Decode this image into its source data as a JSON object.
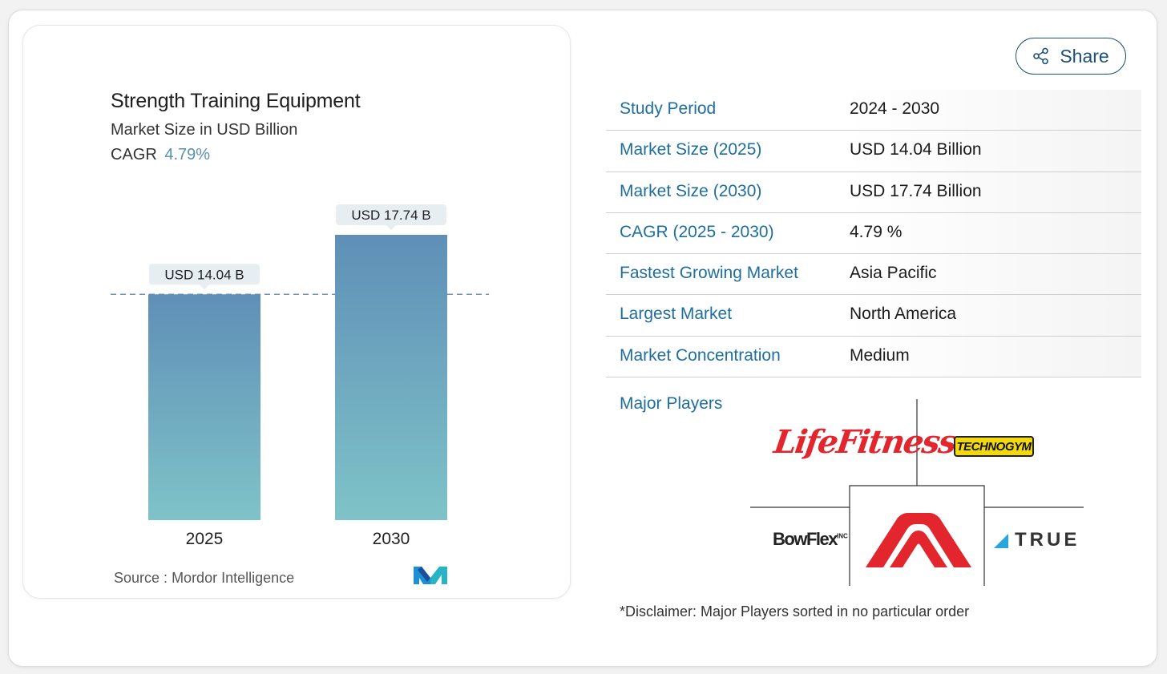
{
  "chart_data": {
    "type": "bar",
    "title": "Strength Training Equipment",
    "subtitle": "Market Size in USD Billion",
    "cagr_label": "CAGR",
    "cagr_value": "4.79%",
    "categories": [
      "2025",
      "2030"
    ],
    "values": [
      14.04,
      17.74
    ],
    "data_labels": [
      "USD 14.04 B",
      "USD 17.74 B"
    ],
    "ylim": [
      0,
      17.74
    ],
    "grid": false,
    "reference_line": 14.04,
    "colors": {
      "bar_top": "#5f8fb7",
      "bar_bottom": "#7fc3c8",
      "label_bg": "#e6eef2"
    }
  },
  "source": {
    "label": "Source :",
    "name": "Mordor Intelligence",
    "logo": "mordor-intelligence-logo"
  },
  "share": {
    "label": "Share",
    "icon": "share-icon"
  },
  "info": [
    {
      "key": "Study Period",
      "value": "2024 - 2030"
    },
    {
      "key": "Market Size (2025)",
      "value": "USD 14.04 Billion"
    },
    {
      "key": "Market Size (2030)",
      "value": "USD 17.74 Billion"
    },
    {
      "key": "CAGR (2025 - 2030)",
      "value": "4.79 %"
    },
    {
      "key": "Fastest Growing Market",
      "value": "Asia Pacific"
    },
    {
      "key": "Largest Market",
      "value": "North America"
    },
    {
      "key": "Market Concentration",
      "value": "Medium"
    }
  ],
  "players": {
    "label": "Major Players",
    "logos": {
      "life_fitness": "LifeFitness",
      "technogym": "TECHNOGYM",
      "bowflex": "BowFlex",
      "bowflex_suffix": "INC",
      "center": "johnson-health-tech-logo",
      "true": "TRUE"
    }
  },
  "disclaimer": "*Disclaimer: Major Players sorted in no particular order"
}
